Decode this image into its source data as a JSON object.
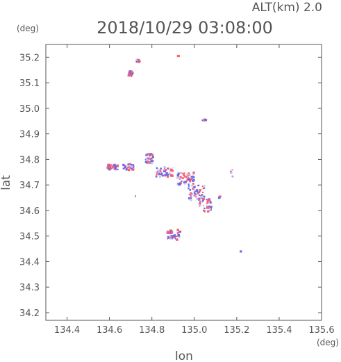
{
  "chart_data": {
    "type": "scatter",
    "title": "2018/10/29 03:08:00",
    "subtitle": "ALT(km) 2.0",
    "xlabel": "lon",
    "ylabel": "lat",
    "x_unit": "(deg)",
    "y_unit": "(deg)",
    "xlim": [
      134.3,
      135.6
    ],
    "ylim": [
      34.17,
      35.25
    ],
    "xticks": [
      "134.4",
      "134.6",
      "134.8",
      "135.0",
      "135.2",
      "135.4",
      "135.6"
    ],
    "yticks": [
      "34.2",
      "34.3",
      "34.4",
      "34.5",
      "34.6",
      "34.7",
      "34.8",
      "34.9",
      "35.0",
      "35.1",
      "35.2"
    ],
    "grid": false,
    "colors": {
      "positive": "#ff5c6c",
      "negative": "#6a6ae8",
      "axis": "#555555"
    },
    "clusters": [
      {
        "lon": 134.735,
        "lat": 35.185,
        "spread_lon": 0.01,
        "spread_lat": 0.008,
        "count": 12
      },
      {
        "lon": 134.7,
        "lat": 35.135,
        "spread_lon": 0.012,
        "spread_lat": 0.012,
        "count": 18
      },
      {
        "lon": 134.925,
        "lat": 35.205,
        "spread_lon": 0.004,
        "spread_lat": 0.002,
        "count": 3
      },
      {
        "lon": 135.05,
        "lat": 34.955,
        "spread_lon": 0.015,
        "spread_lat": 0.004,
        "count": 8
      },
      {
        "lon": 134.615,
        "lat": 34.77,
        "spread_lon": 0.025,
        "spread_lat": 0.01,
        "count": 40
      },
      {
        "lon": 134.69,
        "lat": 34.77,
        "spread_lon": 0.025,
        "spread_lat": 0.012,
        "count": 30
      },
      {
        "lon": 134.79,
        "lat": 34.805,
        "spread_lon": 0.02,
        "spread_lat": 0.02,
        "count": 35
      },
      {
        "lon": 134.86,
        "lat": 34.75,
        "spread_lon": 0.04,
        "spread_lat": 0.02,
        "count": 55
      },
      {
        "lon": 134.96,
        "lat": 34.725,
        "spread_lon": 0.04,
        "spread_lat": 0.025,
        "count": 60
      },
      {
        "lon": 135.01,
        "lat": 34.67,
        "spread_lon": 0.04,
        "spread_lat": 0.03,
        "count": 60
      },
      {
        "lon": 135.05,
        "lat": 34.62,
        "spread_lon": 0.03,
        "spread_lat": 0.025,
        "count": 40
      },
      {
        "lon": 134.9,
        "lat": 34.505,
        "spread_lon": 0.035,
        "spread_lat": 0.02,
        "count": 45
      },
      {
        "lon": 135.18,
        "lat": 34.745,
        "spread_lon": 0.01,
        "spread_lat": 0.015,
        "count": 6
      },
      {
        "lon": 135.12,
        "lat": 34.655,
        "spread_lon": 0.004,
        "spread_lat": 0.006,
        "count": 3
      },
      {
        "lon": 134.72,
        "lat": 34.655,
        "spread_lon": 0.004,
        "spread_lat": 0.004,
        "count": 2
      },
      {
        "lon": 135.22,
        "lat": 34.44,
        "spread_lon": 0.002,
        "spread_lat": 0.002,
        "count": 1
      }
    ]
  }
}
